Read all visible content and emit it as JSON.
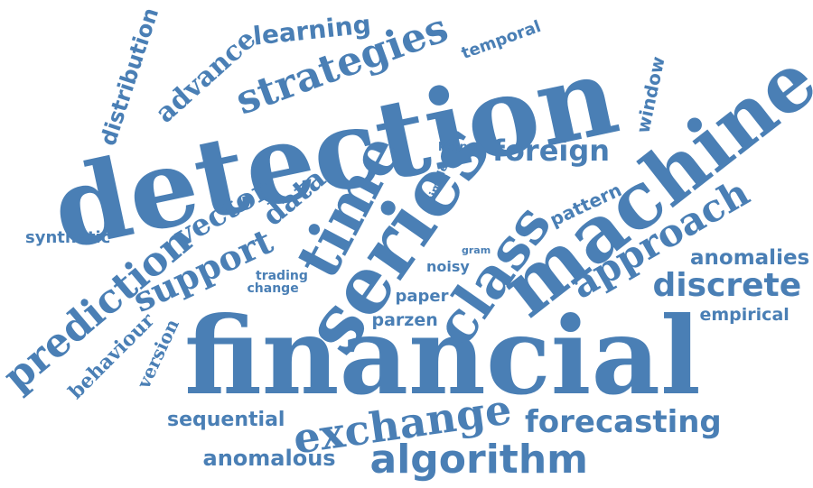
{
  "cloud": {
    "color": "#4a7fb5",
    "background": "#ffffff",
    "words": [
      {
        "key": "financial",
        "text": "financial",
        "weight": 1.0
      },
      {
        "key": "detection",
        "text": "detection",
        "weight": 0.95
      },
      {
        "key": "machine",
        "text": "machine",
        "weight": 0.72
      },
      {
        "key": "series",
        "text": "series",
        "weight": 0.72
      },
      {
        "key": "time",
        "text": "time",
        "weight": 0.55
      },
      {
        "key": "class",
        "text": "class",
        "weight": 0.5
      },
      {
        "key": "exchange",
        "text": "exchange",
        "weight": 0.42
      },
      {
        "key": "algorithm",
        "text": "algorithm",
        "weight": 0.4
      },
      {
        "key": "approach",
        "text": "approach",
        "weight": 0.38
      },
      {
        "key": "prediction",
        "text": "prediction",
        "weight": 0.38
      },
      {
        "key": "strategies",
        "text": "strategies",
        "weight": 0.38
      },
      {
        "key": "forecasting",
        "text": "forecasting",
        "weight": 0.35
      },
      {
        "key": "support",
        "text": "support",
        "weight": 0.35
      },
      {
        "key": "discrete",
        "text": "discrete",
        "weight": 0.33
      },
      {
        "key": "foreign",
        "text": "foreign",
        "weight": 0.3
      },
      {
        "key": "vector",
        "text": "vector",
        "weight": 0.3
      },
      {
        "key": "data",
        "text": "data",
        "weight": 0.3
      },
      {
        "key": "learning",
        "text": "learning",
        "weight": 0.27
      },
      {
        "key": "advance",
        "text": "advance",
        "weight": 0.26
      },
      {
        "key": "anomalous",
        "text": "anomalous",
        "weight": 0.23
      },
      {
        "key": "sequential",
        "text": "sequential",
        "weight": 0.22
      },
      {
        "key": "anomalies",
        "text": "anomalies",
        "weight": 0.22
      },
      {
        "key": "distribution",
        "text": "distribution",
        "weight": 0.22
      },
      {
        "key": "behaviour",
        "text": "behaviour",
        "weight": 0.21
      },
      {
        "key": "version",
        "text": "version",
        "weight": 0.2
      },
      {
        "key": "pattern",
        "text": "pattern",
        "weight": 0.2
      },
      {
        "key": "window",
        "text": "window",
        "weight": 0.2
      },
      {
        "key": "parzen",
        "text": "parzen",
        "weight": 0.19
      },
      {
        "key": "empirical",
        "text": "empirical",
        "weight": 0.19
      },
      {
        "key": "paper",
        "text": "paper",
        "weight": 0.18
      },
      {
        "key": "temporal",
        "text": "temporal",
        "weight": 0.18
      },
      {
        "key": "synthetic",
        "text": "synthetic",
        "weight": 0.18
      },
      {
        "key": "noisy",
        "text": "noisy",
        "weight": 0.16
      },
      {
        "key": "trading",
        "text": "trading",
        "weight": 0.14
      },
      {
        "key": "change",
        "text": "change",
        "weight": 0.14
      },
      {
        "key": "kernel",
        "text": "kernel",
        "weight": 0.13
      },
      {
        "key": "simple",
        "text": "simple",
        "weight": 0.12
      },
      {
        "key": "gram",
        "text": "gram",
        "weight": 0.11
      }
    ]
  }
}
